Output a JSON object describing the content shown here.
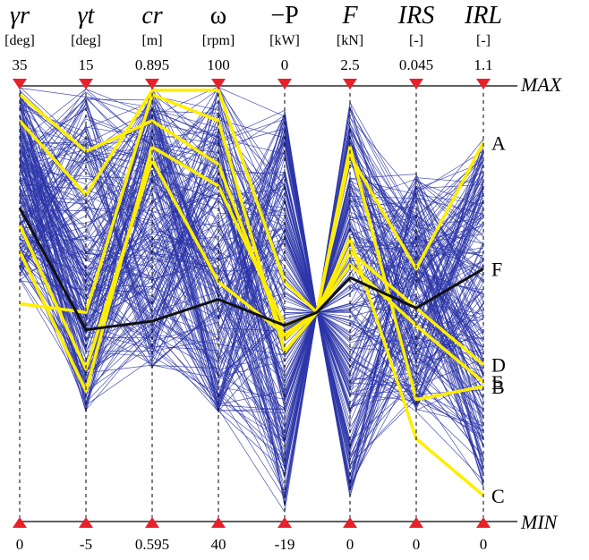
{
  "chart_data": {
    "type": "parallel-coordinates",
    "axes": [
      {
        "label": "γr",
        "unit": "[deg]",
        "max": "35",
        "min": "0"
      },
      {
        "label": "γt",
        "unit": "[deg]",
        "max": "15",
        "min": "-5"
      },
      {
        "label": "cr",
        "unit": "[m]",
        "max": "0.895",
        "min": "0.595"
      },
      {
        "label": "ω",
        "unit": "[rpm]",
        "max": "100",
        "min": "40"
      },
      {
        "label": "−P",
        "unit": "[kW]",
        "max": "0",
        "min": "-19"
      },
      {
        "label": "F",
        "unit": "[kN]",
        "max": "2.5",
        "min": "0"
      },
      {
        "label": "IRS",
        "unit": "[-]",
        "max": "0.045",
        "min": "0"
      },
      {
        "label": "IRL",
        "unit": "[-]",
        "max": "1.1",
        "min": "0"
      }
    ],
    "bound_labels": {
      "max": "MAX",
      "min": "MIN"
    },
    "normalized_range": [
      0,
      1
    ],
    "background_lines": {
      "color": "#2b35a8",
      "count": 220
    },
    "highlighted_solutions": [
      {
        "name": "A",
        "color": "#ffee00",
        "values": [
          0.5,
          0.48,
          0.98,
          0.92,
          0.39,
          0.84,
          0.58,
          0.87
        ]
      },
      {
        "name": "B",
        "color": "#ffee00",
        "values": [
          0.92,
          0.75,
          0.99,
          0.99,
          0.55,
          0.86,
          0.28,
          0.31
        ]
      },
      {
        "name": "C",
        "color": "#ffee00",
        "values": [
          0.98,
          0.85,
          0.92,
          0.82,
          0.42,
          0.65,
          0.19,
          0.06
        ]
      },
      {
        "name": "D",
        "color": "#ffee00",
        "values": [
          0.68,
          0.35,
          0.83,
          0.55,
          0.43,
          0.62,
          0.49,
          0.36
        ]
      },
      {
        "name": "E",
        "color": "#ffee00",
        "values": [
          0.62,
          0.3,
          0.86,
          0.77,
          0.45,
          0.59,
          0.45,
          0.32
        ]
      },
      {
        "name": "F",
        "color": "#111111",
        "values": [
          0.72,
          0.44,
          0.46,
          0.51,
          0.45,
          0.56,
          0.49,
          0.58
        ]
      }
    ],
    "label_order": [
      "A",
      "F",
      "D",
      "E",
      "B",
      "C"
    ]
  }
}
